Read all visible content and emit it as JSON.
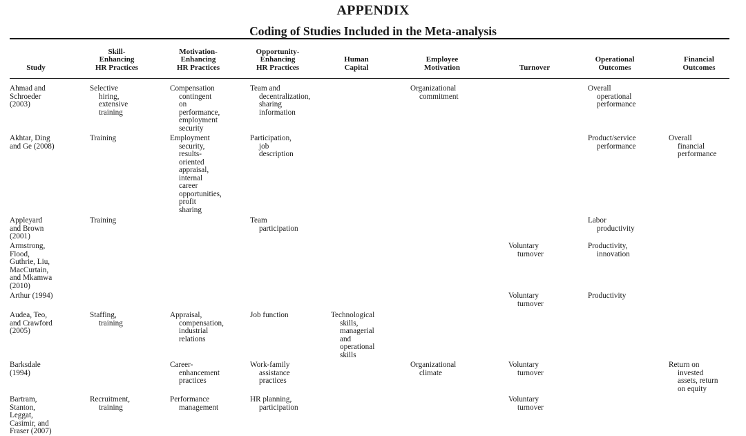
{
  "title": "APPENDIX",
  "subtitle": "Coding of Studies Included in the Meta-analysis",
  "headers": [
    [
      "Study"
    ],
    [
      "Skill-",
      "Enhancing",
      "HR Practices"
    ],
    [
      "Motivation-",
      "Enhancing",
      "HR Practices"
    ],
    [
      "Opportunity-",
      "Enhancing",
      "HR Practices"
    ],
    [
      "Human",
      "Capital"
    ],
    [
      "Employee",
      "Motivation"
    ],
    [
      "Turnover"
    ],
    [
      "Operational",
      "Outcomes"
    ],
    [
      "Financial",
      "Outcomes"
    ]
  ],
  "rows": [
    {
      "study": [
        "Ahmad and",
        "Schroeder",
        "(2003)"
      ],
      "skill": [
        "Selective",
        "hiring,",
        "extensive",
        "training"
      ],
      "motivation": [
        "Compensation",
        "contingent",
        "on",
        "performance,",
        "employment",
        "security"
      ],
      "opportunity": [
        "Team and",
        "decentralization,",
        "sharing",
        "information"
      ],
      "human_capital": [],
      "employee_motivation": [
        "Organizational",
        "commitment"
      ],
      "turnover": [],
      "operational": [
        "Overall",
        "operational",
        "performance"
      ],
      "financial": []
    },
    {
      "study": [
        "Akhtar, Ding",
        "and Ge (2008)"
      ],
      "skill": [
        "Training"
      ],
      "motivation": [
        "Employment",
        "security,",
        "results-",
        "oriented",
        "appraisal,",
        "internal",
        "career",
        "opportunities,",
        "profit",
        "sharing"
      ],
      "opportunity": [
        "Participation,",
        "job",
        "description"
      ],
      "human_capital": [],
      "employee_motivation": [],
      "turnover": [],
      "operational": [
        "Product/service",
        "performance"
      ],
      "financial": [
        "Overall",
        "financial",
        "performance"
      ]
    },
    {
      "study": [
        "Appleyard",
        "and Brown",
        "(2001)"
      ],
      "skill": [
        "Training"
      ],
      "motivation": [],
      "opportunity": [
        "Team",
        "participation"
      ],
      "human_capital": [],
      "employee_motivation": [],
      "turnover": [],
      "operational": [
        "Labor",
        "productivity"
      ],
      "financial": []
    },
    {
      "study": [
        "Armstrong,",
        "Flood,",
        "Guthrie, Liu,",
        "MacCurtain,",
        "and Mkamwa",
        "(2010)"
      ],
      "skill": [],
      "motivation": [],
      "opportunity": [],
      "human_capital": [],
      "employee_motivation": [],
      "turnover": [
        "Voluntary",
        "turnover"
      ],
      "operational": [
        "Productivity,",
        "innovation"
      ],
      "financial": []
    },
    {
      "study": [
        "Arthur (1994)"
      ],
      "skill": [],
      "motivation": [],
      "opportunity": [],
      "human_capital": [],
      "employee_motivation": [],
      "turnover": [
        "Voluntary",
        "turnover"
      ],
      "operational": [
        "Productivity"
      ],
      "financial": []
    },
    {
      "study": [
        "Audea, Teo,",
        "and Crawford",
        "(2005)"
      ],
      "skill": [
        "Staffing,",
        "training"
      ],
      "motivation": [
        "Appraisal,",
        "compensation,",
        "industrial",
        "relations"
      ],
      "opportunity": [
        "Job function"
      ],
      "human_capital": [
        "Technological",
        "skills,",
        "managerial",
        "and",
        "operational",
        "skills"
      ],
      "employee_motivation": [],
      "turnover": [],
      "operational": [],
      "financial": []
    },
    {
      "study": [
        "Barksdale",
        "(1994)"
      ],
      "skill": [],
      "motivation": [
        "Career-",
        "enhancement",
        "practices"
      ],
      "opportunity": [
        "Work-family",
        "assistance",
        "practices"
      ],
      "human_capital": [],
      "employee_motivation": [
        "Organizational",
        "climate"
      ],
      "turnover": [
        "Voluntary",
        "turnover"
      ],
      "operational": [],
      "financial": [
        "Return on",
        "invested",
        "assets, return",
        "on equity"
      ]
    },
    {
      "study": [
        "Bartram,",
        "Stanton,",
        "Leggat,",
        "Casimir, and",
        "Fraser (2007)"
      ],
      "skill": [
        "Recruitment,",
        "training"
      ],
      "motivation": [
        "Performance",
        "management"
      ],
      "opportunity": [
        "HR planning,",
        "participation"
      ],
      "human_capital": [],
      "employee_motivation": [],
      "turnover": [
        "Voluntary",
        "turnover"
      ],
      "operational": [],
      "financial": []
    }
  ]
}
